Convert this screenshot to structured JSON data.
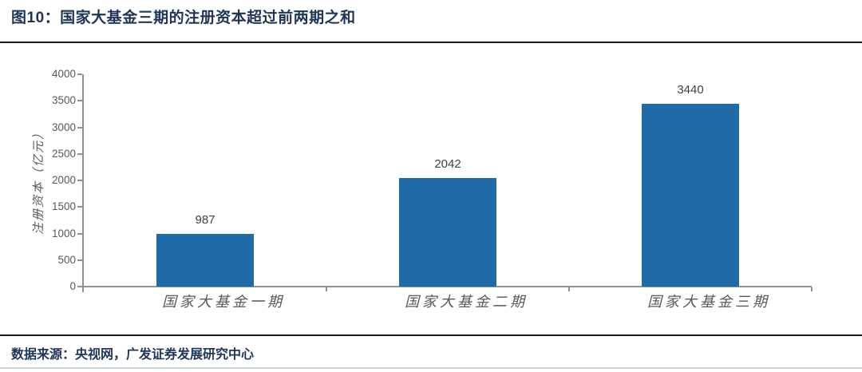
{
  "figure": {
    "title": "图10：国家大基金三期的注册资本超过前两期之和",
    "source": "数据来源：央视网，广发证券发展研究中心"
  },
  "chart_data": {
    "type": "bar",
    "categories": [
      "国家大基金一期",
      "国家大基金二期",
      "国家大基金三期"
    ],
    "values": [
      987,
      2042,
      3440
    ],
    "data_labels": [
      "987",
      "2042",
      "3440"
    ],
    "title": "",
    "xlabel": "",
    "ylabel": "注册资本（亿元）",
    "ylim": [
      0,
      4000
    ],
    "yticks": [
      0,
      500,
      1000,
      1500,
      2000,
      2500,
      3000,
      3500,
      4000
    ],
    "grid": false,
    "legend": "none",
    "bar_color": "#1F6BA8"
  },
  "colors": {
    "title_text": "#1F3557",
    "source_text": "#1F3557",
    "bar": "#1F6BA8",
    "axis_line": "#919191",
    "tick_label": "#595959",
    "category_label": "#595959",
    "value_label": "#404040",
    "rule_dark": "#1a1a1a",
    "rule_footer": "#ccd4df"
  }
}
